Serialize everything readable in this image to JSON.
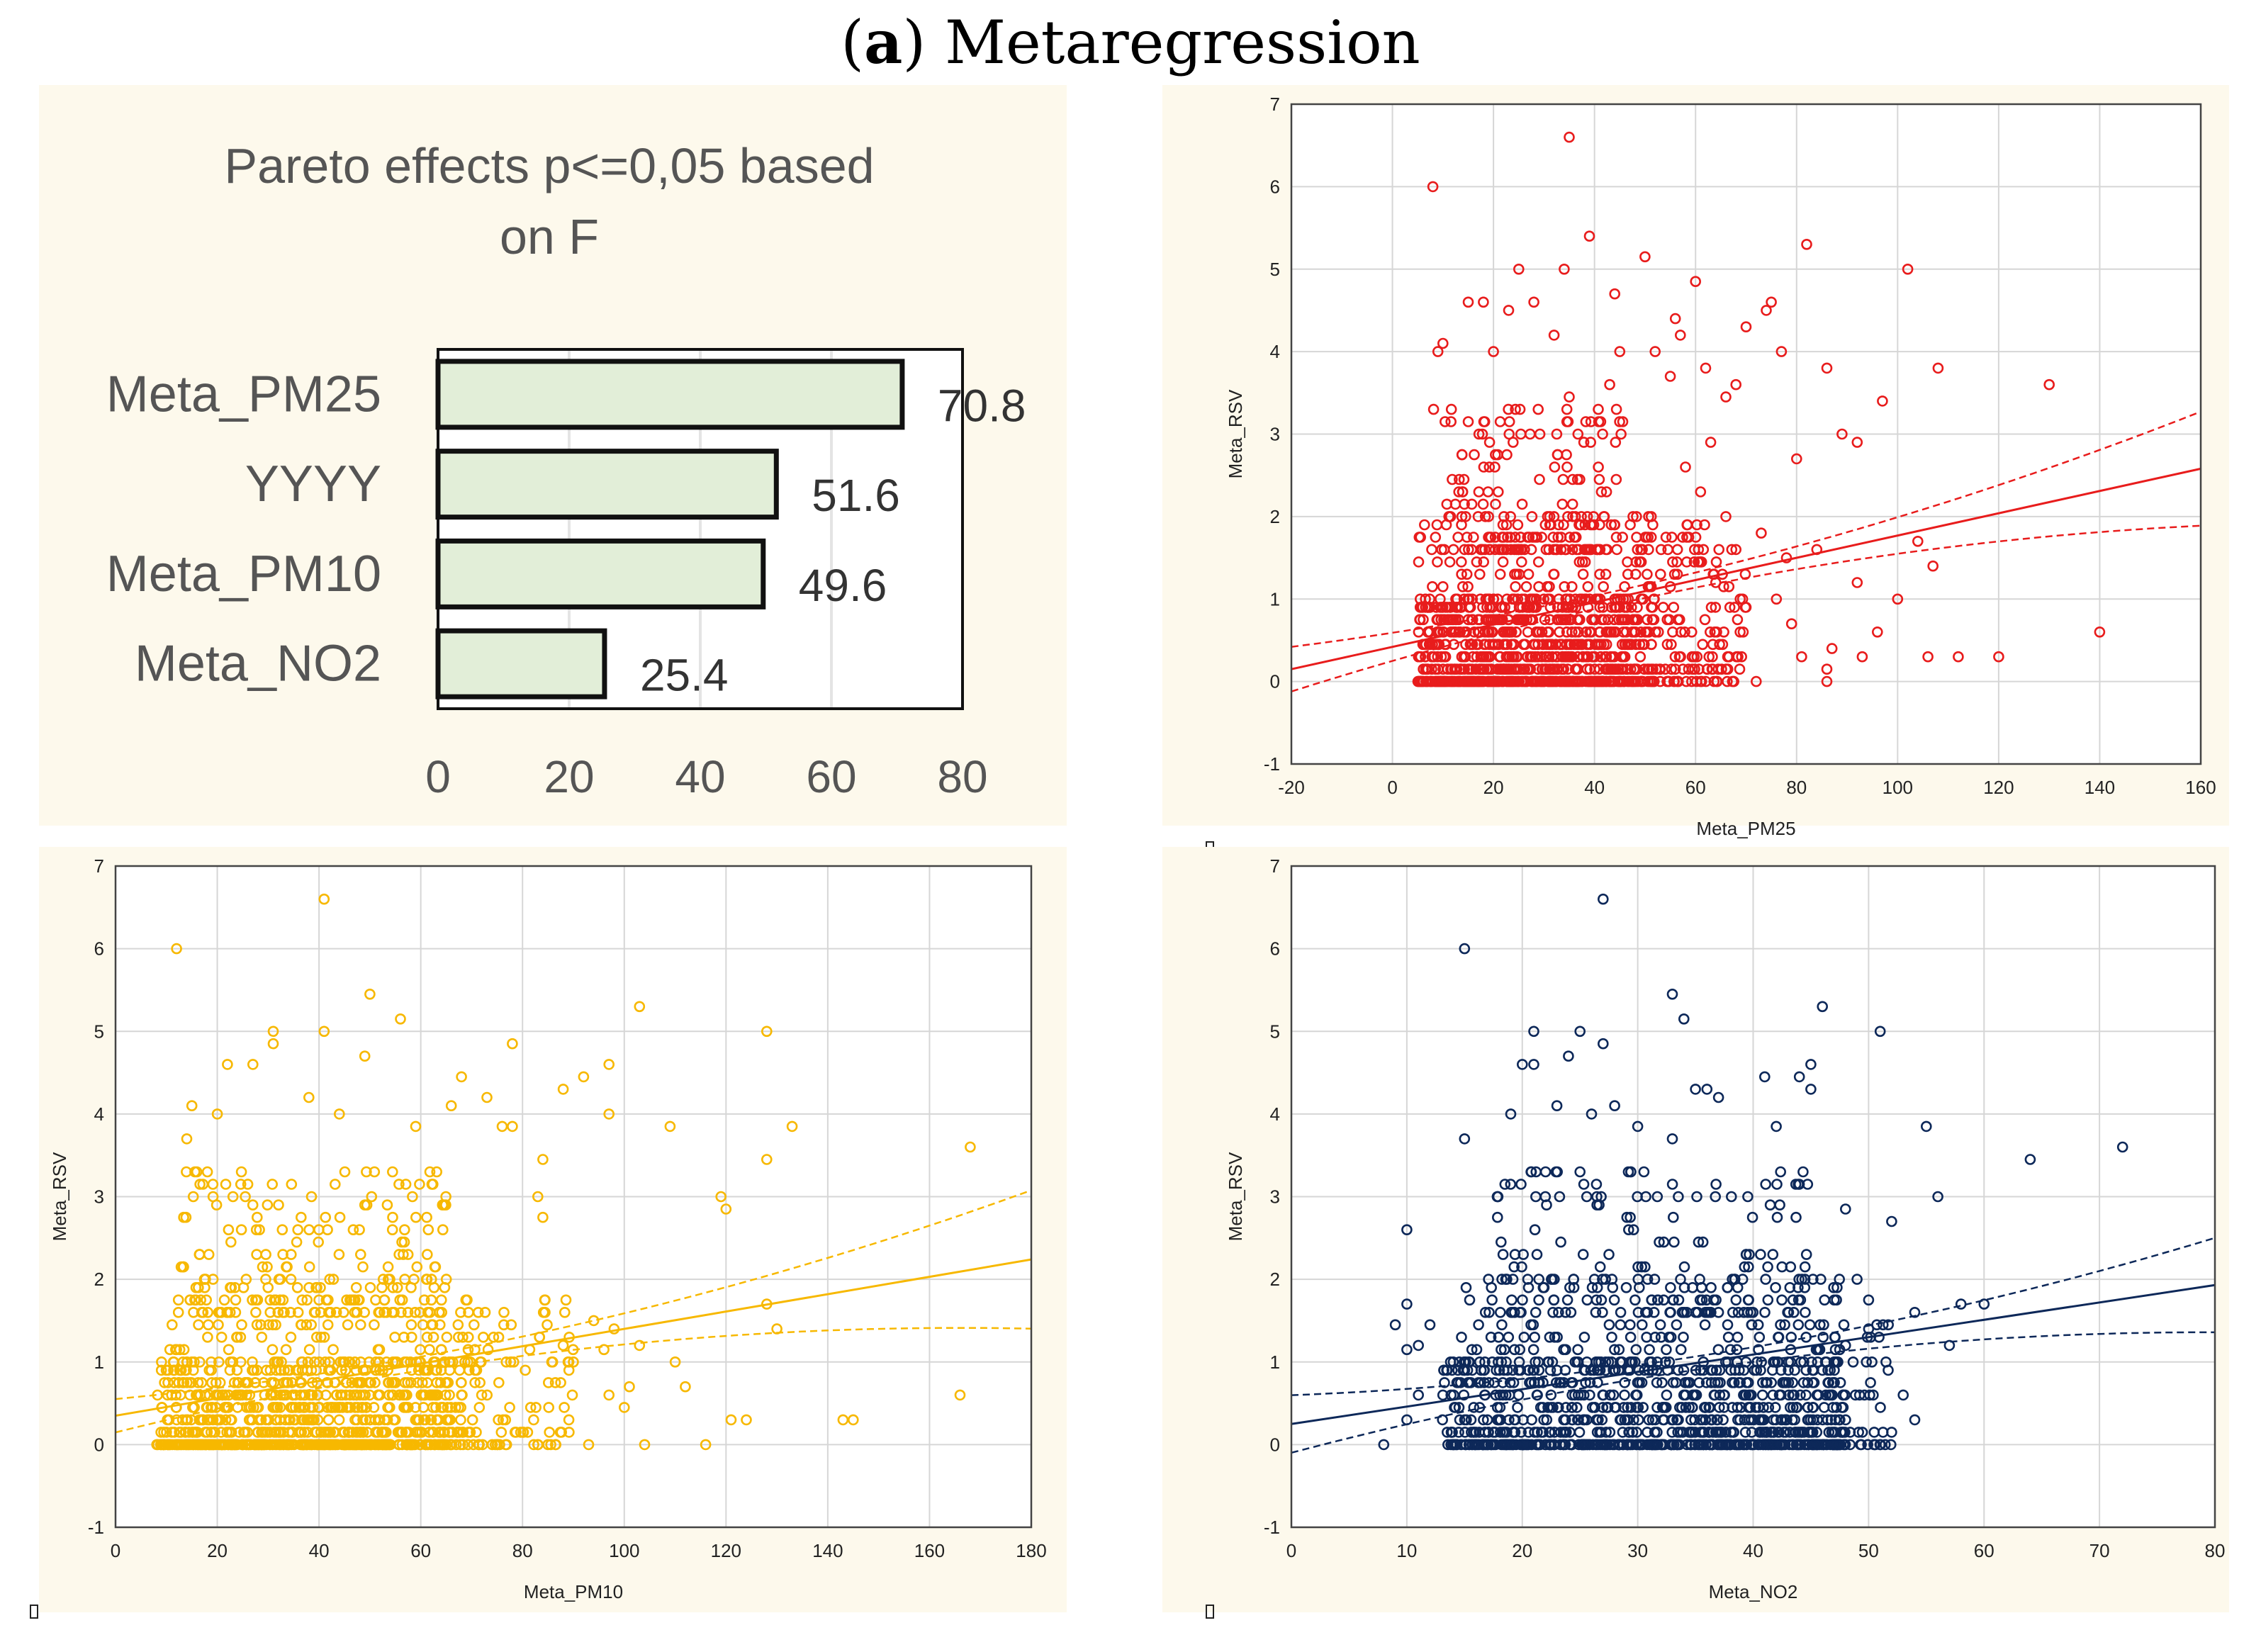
{
  "figure_title_letter": "a",
  "figure_title_text": "Metaregression",
  "colors": {
    "panel_bg": "#fdf9ec",
    "pareto_bar": "#e2eed8",
    "red": "#e81c1c",
    "yellow": "#f7b800",
    "navy": "#0d2859",
    "grid": "#d6d6d6"
  },
  "chart_data": [
    {
      "type": "bar",
      "orientation": "horizontal",
      "title": "Pareto effects p<=0,05 based on F",
      "title_lines": [
        "Pareto effects p<=0,05 based",
        "on F"
      ],
      "categories": [
        "Meta_PM25",
        "YYYY",
        "Meta_PM10",
        "Meta_NO2"
      ],
      "values": [
        70.8,
        51.6,
        49.6,
        25.4
      ],
      "value_labels": [
        "70.8",
        "51.6",
        "49.6",
        "25.4"
      ],
      "xlim": [
        0,
        80
      ],
      "xticks": [
        "0",
        "20",
        "40",
        "60",
        "80"
      ]
    },
    {
      "type": "scatter",
      "color": "#e81c1c",
      "xlabel": "Meta_PM25",
      "ylabel": "Meta_RSV",
      "xlim": [
        -20,
        160
      ],
      "ylim": [
        -1,
        7
      ],
      "xticks": [
        "-20",
        "0",
        "20",
        "40",
        "60",
        "80",
        "100",
        "120",
        "140",
        "160"
      ],
      "yticks": [
        "-1",
        "0",
        "1",
        "2",
        "3",
        "4",
        "5",
        "6",
        "7"
      ],
      "fit": {
        "intercept": 0.42,
        "slope": 0.0135
      },
      "points": [
        [
          8,
          6.0
        ],
        [
          35,
          6.6
        ],
        [
          39,
          5.4
        ],
        [
          50,
          5.15
        ],
        [
          82,
          5.3
        ],
        [
          102,
          5.0
        ],
        [
          60,
          4.85
        ],
        [
          23,
          4.5
        ],
        [
          25,
          5.0
        ],
        [
          28,
          4.6
        ],
        [
          34,
          5.0
        ],
        [
          44,
          4.7
        ],
        [
          56,
          4.4
        ],
        [
          70,
          4.3
        ],
        [
          74,
          4.5
        ],
        [
          75,
          4.6
        ],
        [
          15,
          4.6
        ],
        [
          18,
          4.6
        ],
        [
          10,
          4.1
        ],
        [
          9,
          4.0
        ],
        [
          20,
          4.0
        ],
        [
          32,
          4.2
        ],
        [
          45,
          4.0
        ],
        [
          52,
          4.0
        ],
        [
          57,
          4.2
        ],
        [
          62,
          3.8
        ],
        [
          77,
          4.0
        ],
        [
          86,
          3.8
        ],
        [
          97,
          3.4
        ],
        [
          108,
          3.8
        ],
        [
          130,
          3.6
        ],
        [
          35,
          3.45
        ],
        [
          43,
          3.6
        ],
        [
          55,
          3.7
        ],
        [
          66,
          3.45
        ],
        [
          68,
          3.6
        ],
        [
          89,
          3.0
        ],
        [
          92,
          2.9
        ],
        [
          80,
          2.7
        ],
        [
          120,
          0.3
        ],
        [
          140,
          0.6
        ],
        [
          112,
          0.3
        ],
        [
          106,
          0.3
        ],
        [
          104,
          1.7
        ],
        [
          100,
          1.0
        ],
        [
          92,
          1.2
        ],
        [
          96,
          0.6
        ],
        [
          93,
          0.3
        ],
        [
          107,
          1.4
        ],
        [
          84,
          1.6
        ],
        [
          86,
          0.15
        ],
        [
          86,
          0.0
        ],
        [
          72,
          0.0
        ],
        [
          79,
          0.7
        ],
        [
          81,
          0.3
        ],
        [
          87,
          0.4
        ],
        [
          78,
          1.5
        ],
        [
          73,
          1.8
        ],
        [
          76,
          1.0
        ],
        [
          64,
          1.2
        ],
        [
          70,
          0.9
        ],
        [
          58,
          2.6
        ],
        [
          61,
          2.3
        ],
        [
          66,
          2.0
        ],
        [
          68,
          1.6
        ],
        [
          63,
          2.9
        ]
      ],
      "clusters": [
        {
          "x": [
            5,
            48
          ],
          "y": [
            0,
            1.0
          ],
          "n": 520
        },
        {
          "x": [
            5,
            53
          ],
          "y": [
            0,
            2.0
          ],
          "n": 360
        },
        {
          "x": [
            7,
            46
          ],
          "y": [
            1.5,
            3.4
          ],
          "n": 150
        },
        {
          "x": [
            48,
            70
          ],
          "y": [
            0,
            1.9
          ],
          "n": 160
        },
        {
          "x": [
            5,
            45
          ],
          "y": [
            0,
            0
          ],
          "n": 90
        }
      ]
    },
    {
      "type": "scatter",
      "color": "#f7b800",
      "xlabel": "Meta_PM10",
      "ylabel": "Meta_RSV",
      "xlim": [
        0,
        180
      ],
      "ylim": [
        -1,
        7
      ],
      "xticks": [
        "0",
        "20",
        "40",
        "60",
        "80",
        "100",
        "120",
        "140",
        "160",
        "180"
      ],
      "yticks": [
        "-1",
        "0",
        "1",
        "2",
        "3",
        "4",
        "5",
        "6",
        "7"
      ],
      "fit": {
        "intercept": 0.35,
        "slope": 0.0105
      },
      "points": [
        [
          12,
          6.0
        ],
        [
          41,
          6.6
        ],
        [
          50,
          5.45
        ],
        [
          56,
          5.15
        ],
        [
          31,
          5.0
        ],
        [
          31,
          4.85
        ],
        [
          41,
          5.0
        ],
        [
          49,
          4.7
        ],
        [
          78,
          4.85
        ],
        [
          103,
          5.3
        ],
        [
          128,
          5.0
        ],
        [
          27,
          4.6
        ],
        [
          22,
          4.6
        ],
        [
          15,
          4.1
        ],
        [
          14,
          3.7
        ],
        [
          20,
          4.0
        ],
        [
          38,
          4.2
        ],
        [
          44,
          4.0
        ],
        [
          59,
          3.85
        ],
        [
          66,
          4.1
        ],
        [
          68,
          4.45
        ],
        [
          73,
          4.2
        ],
        [
          76,
          3.85
        ],
        [
          78,
          3.85
        ],
        [
          88,
          4.3
        ],
        [
          92,
          4.45
        ],
        [
          97,
          4.6
        ],
        [
          97,
          4.0
        ],
        [
          109,
          3.85
        ],
        [
          133,
          3.85
        ],
        [
          168,
          3.6
        ],
        [
          128,
          3.45
        ],
        [
          84,
          3.45
        ],
        [
          83,
          3.0
        ],
        [
          84,
          2.75
        ],
        [
          119,
          3.0
        ],
        [
          120,
          2.85
        ],
        [
          166,
          0.6
        ],
        [
          143,
          0.3
        ],
        [
          145,
          0.3
        ],
        [
          124,
          0.3
        ],
        [
          121,
          0.3
        ],
        [
          116,
          0.0
        ],
        [
          112,
          0.7
        ],
        [
          128,
          1.7
        ],
        [
          130,
          1.4
        ],
        [
          103,
          1.2
        ],
        [
          104,
          0.0
        ],
        [
          100,
          0.45
        ],
        [
          101,
          0.7
        ],
        [
          97,
          0.6
        ],
        [
          93,
          0.0
        ],
        [
          110,
          1.0
        ],
        [
          98,
          1.4
        ],
        [
          94,
          1.5
        ],
        [
          96,
          1.15
        ],
        [
          88,
          1.2
        ],
        [
          90,
          1.0
        ]
      ],
      "clusters": [
        {
          "x": [
            8,
            66
          ],
          "y": [
            0,
            1.0
          ],
          "n": 520
        },
        {
          "x": [
            10,
            72
          ],
          "y": [
            0,
            2.0
          ],
          "n": 380
        },
        {
          "x": [
            12,
            65
          ],
          "y": [
            1.5,
            3.4
          ],
          "n": 170
        },
        {
          "x": [
            60,
            90
          ],
          "y": [
            0,
            1.8
          ],
          "n": 120
        },
        {
          "x": [
            8,
            60
          ],
          "y": [
            0,
            0
          ],
          "n": 90
        }
      ]
    },
    {
      "type": "scatter",
      "color": "#0d2859",
      "xlabel": "Meta_NO2",
      "ylabel": "Meta_RSV",
      "xlim": [
        0,
        80
      ],
      "ylim": [
        -1,
        7
      ],
      "xticks": [
        "0",
        "10",
        "20",
        "30",
        "40",
        "50",
        "60",
        "70",
        "80"
      ],
      "yticks": [
        "-1",
        "0",
        "1",
        "2",
        "3",
        "4",
        "5",
        "6",
        "7"
      ],
      "fit": {
        "intercept": 0.25,
        "slope": 0.021
      },
      "points": [
        [
          15,
          6.0
        ],
        [
          27,
          6.6
        ],
        [
          33,
          5.45
        ],
        [
          34,
          5.15
        ],
        [
          21,
          5.0
        ],
        [
          25,
          5.0
        ],
        [
          46,
          5.3
        ],
        [
          51,
          5.0
        ],
        [
          20,
          4.6
        ],
        [
          24,
          4.7
        ],
        [
          27,
          4.85
        ],
        [
          45,
          4.6
        ],
        [
          44,
          4.45
        ],
        [
          45,
          4.3
        ],
        [
          36,
          4.3
        ],
        [
          35,
          4.3
        ],
        [
          15,
          3.7
        ],
        [
          19,
          4.0
        ],
        [
          21,
          4.6
        ],
        [
          23,
          4.1
        ],
        [
          26,
          4.0
        ],
        [
          28,
          4.1
        ],
        [
          30,
          3.85
        ],
        [
          33,
          3.7
        ],
        [
          37,
          4.2
        ],
        [
          41,
          4.45
        ],
        [
          42,
          3.85
        ],
        [
          55,
          3.85
        ],
        [
          64,
          3.45
        ],
        [
          72,
          3.6
        ],
        [
          56,
          3.0
        ],
        [
          52,
          2.7
        ],
        [
          48,
          2.85
        ],
        [
          10,
          2.6
        ],
        [
          9,
          1.45
        ],
        [
          10,
          1.15
        ],
        [
          11,
          1.2
        ],
        [
          10,
          1.7
        ],
        [
          12,
          1.45
        ],
        [
          8,
          0.0
        ],
        [
          10,
          0.3
        ],
        [
          11,
          0.6
        ],
        [
          54,
          1.6
        ],
        [
          57,
          1.2
        ],
        [
          58,
          1.7
        ],
        [
          60,
          1.7
        ],
        [
          54,
          0.3
        ],
        [
          52,
          0.15
        ],
        [
          53,
          0.6
        ],
        [
          50,
          1.4
        ],
        [
          49,
          2.0
        ],
        [
          50,
          1.75
        ],
        [
          48,
          1.2
        ],
        [
          46,
          0.9
        ]
      ],
      "clusters": [
        {
          "x": [
            13,
            48
          ],
          "y": [
            0,
            1.0
          ],
          "n": 520
        },
        {
          "x": [
            14,
            48
          ],
          "y": [
            0,
            2.0
          ],
          "n": 380
        },
        {
          "x": [
            17,
            45
          ],
          "y": [
            1.5,
            3.4
          ],
          "n": 170
        },
        {
          "x": [
            13,
            52
          ],
          "y": [
            0,
            0
          ],
          "n": 90
        },
        {
          "x": [
            38,
            52
          ],
          "y": [
            0,
            1.5
          ],
          "n": 80
        }
      ]
    }
  ]
}
